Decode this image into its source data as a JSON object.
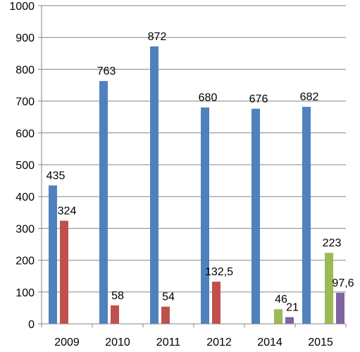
{
  "chart_data": {
    "type": "bar",
    "categories": [
      "2009",
      "2010",
      "2011",
      "2012",
      "2014",
      "2015"
    ],
    "ylim": [
      0,
      1000
    ],
    "yticks": [
      "0",
      "100",
      "200",
      "300",
      "400",
      "500",
      "600",
      "700",
      "800",
      "900",
      "1000"
    ],
    "grid": true,
    "legend": "none",
    "series": [
      {
        "color": "#4F81BD",
        "values": [
          435,
          763,
          872,
          680,
          676,
          682
        ],
        "labels": [
          "435",
          "763",
          "872",
          "680",
          "676",
          "682"
        ]
      },
      {
        "color": "#C0504D",
        "values": [
          324,
          58,
          54,
          132.5,
          null,
          null
        ],
        "labels": [
          "324",
          "58",
          "54",
          "132,5",
          "",
          ""
        ]
      },
      {
        "color": "#9BBB59",
        "values": [
          null,
          null,
          null,
          null,
          46,
          223
        ],
        "labels": [
          "",
          "",
          "",
          "",
          "46",
          "223"
        ]
      },
      {
        "color": "#8064A2",
        "values": [
          null,
          null,
          null,
          null,
          21,
          97.6
        ],
        "labels": [
          "",
          "",
          "",
          "",
          "21",
          "97,6"
        ]
      }
    ]
  }
}
